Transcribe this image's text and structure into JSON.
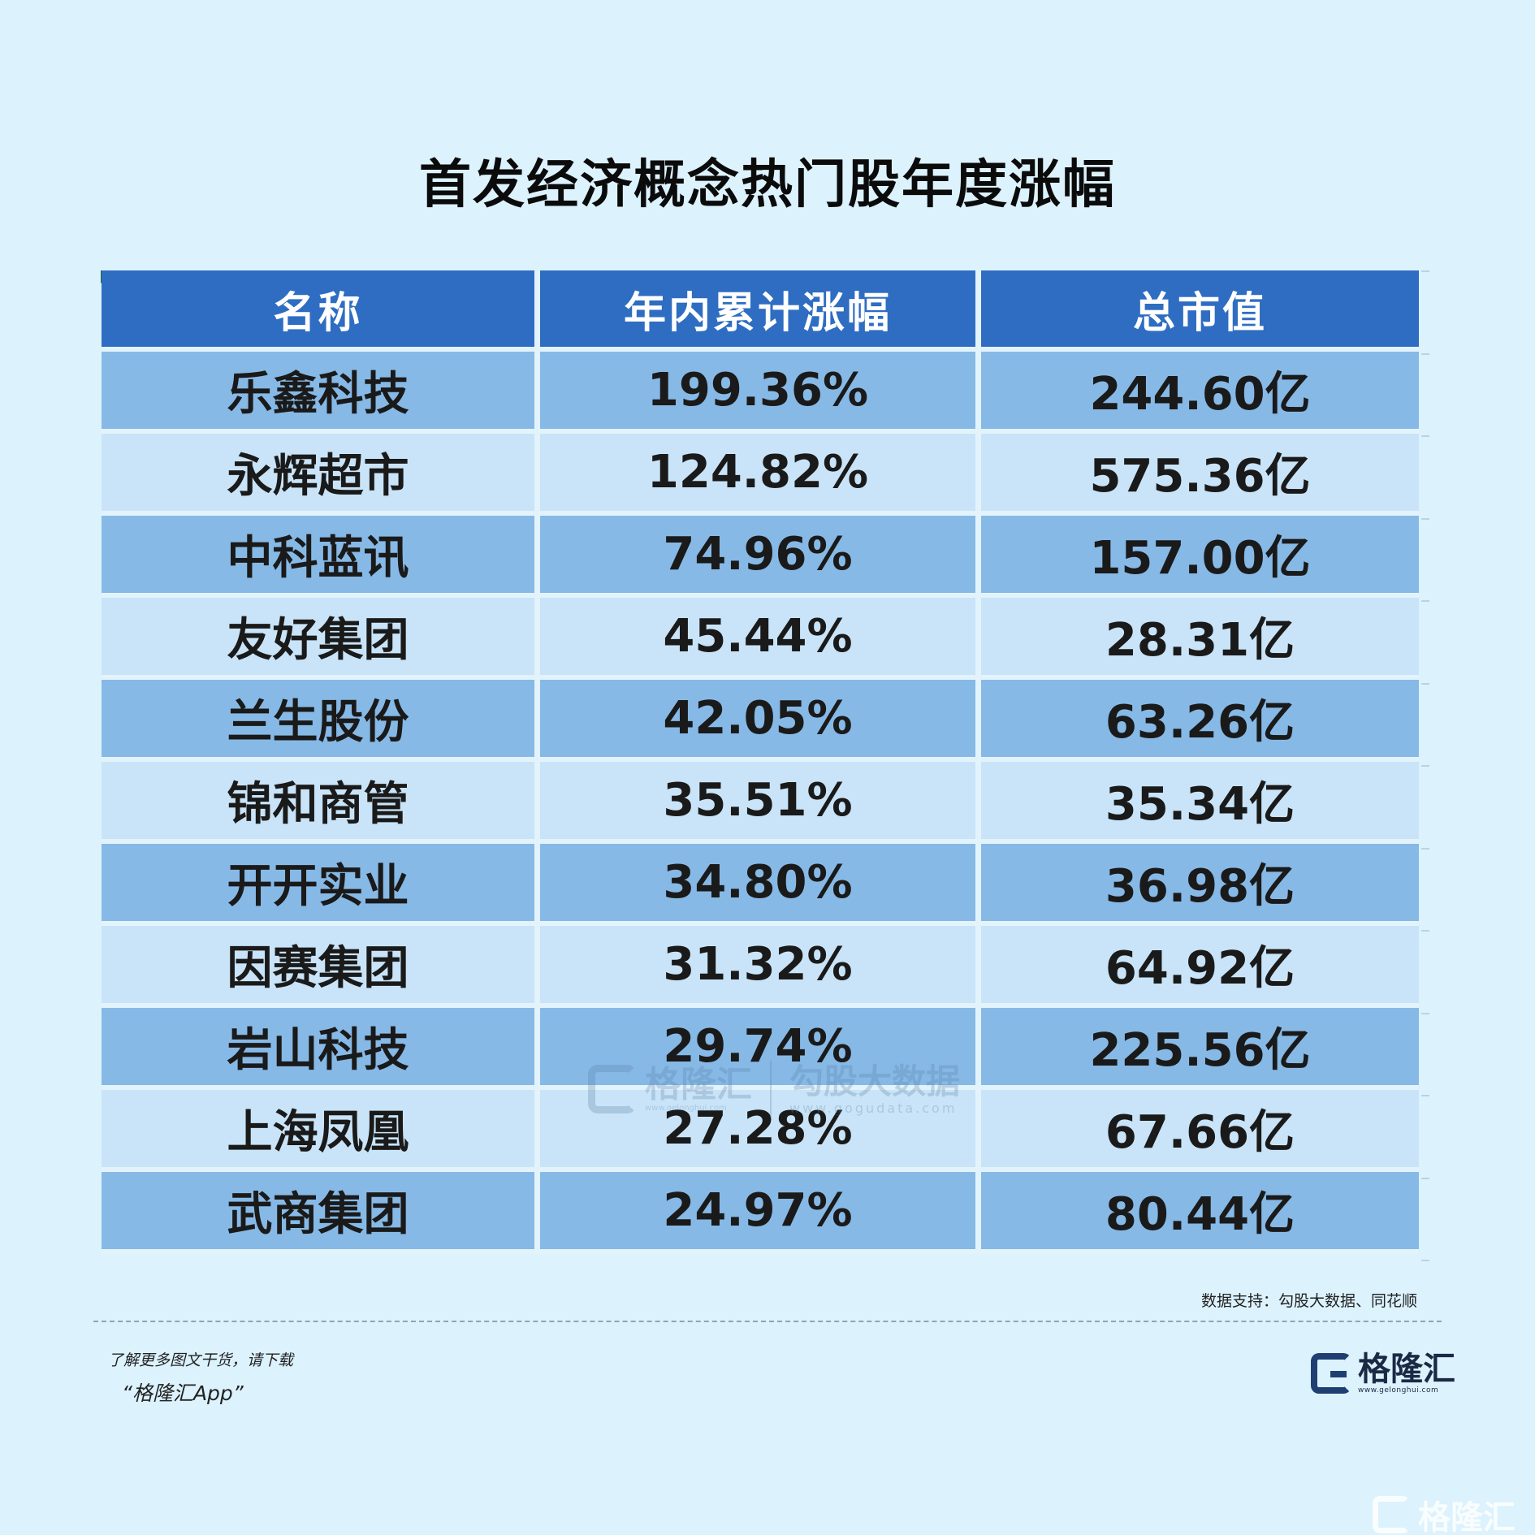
{
  "title": "首发经济概念热门股年度涨幅",
  "table": {
    "headers": [
      "名称",
      "年内累计涨幅",
      "总市值"
    ],
    "rows": [
      {
        "name": "乐鑫科技",
        "change": "199.36%",
        "market_cap": "244.60亿"
      },
      {
        "name": "永辉超市",
        "change": "124.82%",
        "market_cap": "575.36亿"
      },
      {
        "name": "中科蓝讯",
        "change": "74.96%",
        "market_cap": "157.00亿"
      },
      {
        "name": "友好集团",
        "change": "45.44%",
        "market_cap": "28.31亿"
      },
      {
        "name": "兰生股份",
        "change": "42.05%",
        "market_cap": "63.26亿"
      },
      {
        "name": "锦和商管",
        "change": "35.51%",
        "market_cap": "35.34亿"
      },
      {
        "name": "开开实业",
        "change": "34.80%",
        "market_cap": "36.98亿"
      },
      {
        "name": "因赛集团",
        "change": "31.32%",
        "market_cap": "64.92亿"
      },
      {
        "name": "岩山科技",
        "change": "29.74%",
        "market_cap": "225.56亿"
      },
      {
        "name": "上海凤凰",
        "change": "27.28%",
        "market_cap": "67.66亿"
      },
      {
        "name": "武商集团",
        "change": "24.97%",
        "market_cap": "80.44亿"
      }
    ]
  },
  "source": "数据支持：勾股大数据、同花顺",
  "footer": {
    "note": "了解更多图文干货，请下载",
    "app": "“格隆汇App”"
  },
  "logo": {
    "name": "格隆汇",
    "url": "www.gelonghui.com"
  },
  "watermark": {
    "name": "格隆汇",
    "url": "www.gelonghui.com",
    "name2": "勾股大数据",
    "url2": "www.gogudata.com"
  },
  "corner_logo": {
    "name": "格隆汇"
  },
  "colors": {
    "header_bg": "#2e6dc2",
    "row_dark": "#86b9e6",
    "row_light": "#c9e4f8",
    "page_bg": "#dcf2fd"
  }
}
